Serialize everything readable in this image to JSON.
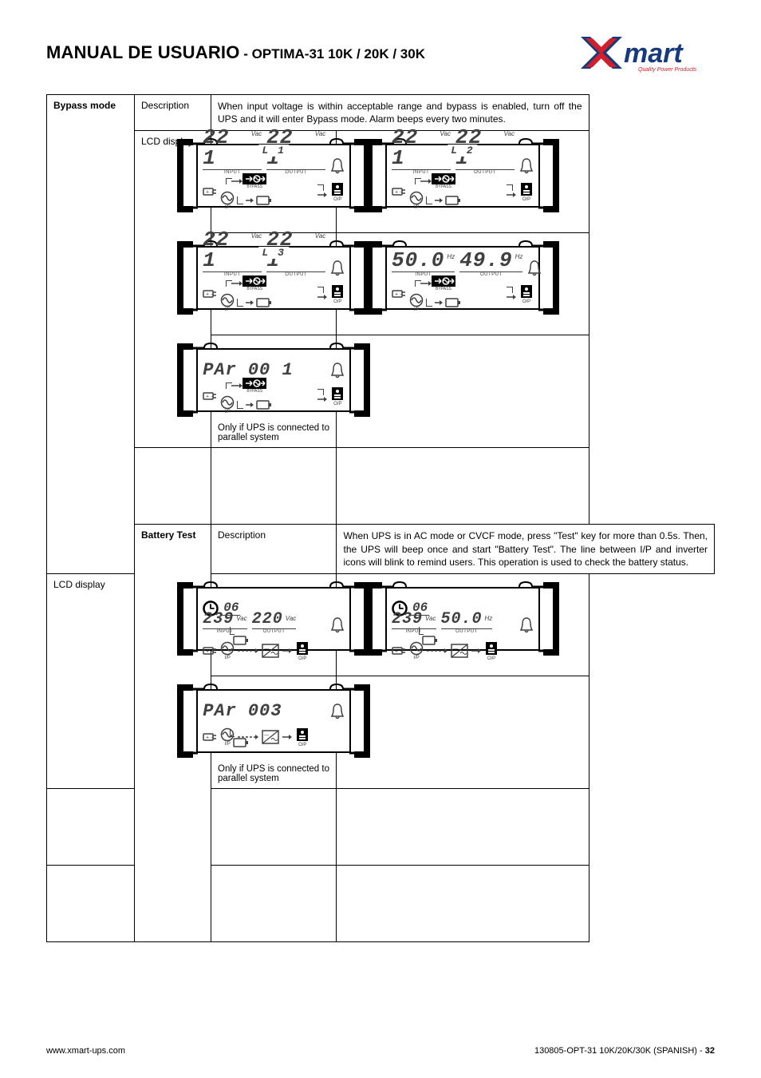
{
  "header": {
    "title_strong": "MANUAL DE USUARIO",
    "title_sub": " - OPTIMA-31 10K / 20K / 30K",
    "logo_text": "mart",
    "logo_tagline": "Quality Power Products"
  },
  "colors": {
    "text": "#000000",
    "lcd_ink": "#404040",
    "logo_blue": "#163a7a",
    "logo_red": "#d1202b",
    "logo_tag": "#d1202b"
  },
  "sections": {
    "bypass": {
      "label": "Bypass mode",
      "desc_label": "Description",
      "lcd_label": "LCD display",
      "description": "When input voltage is within acceptable range and bypass is enabled, turn off the UPS and it will enter Bypass mode. Alarm beeps every two minutes.",
      "parallel_caption": "Only if UPS is connected to parallel system",
      "panels": [
        {
          "phase": "L 1",
          "in_val": "22 1",
          "in_unit": "Vac",
          "out_val": "22 1",
          "out_unit": "Vac",
          "mode": "bypass"
        },
        {
          "phase": "L 2",
          "in_val": "22 1",
          "in_unit": "Vac",
          "out_val": "22 1",
          "out_unit": "Vac",
          "mode": "bypass"
        },
        {
          "phase": "L 3",
          "in_val": "22 1",
          "in_unit": "Vac",
          "out_val": "22 1",
          "out_unit": "Vac",
          "mode": "bypass"
        },
        {
          "phase": "",
          "in_val": "50.0",
          "in_unit": "Hz",
          "out_val": "49.9",
          "out_unit": "Hz",
          "mode": "bypass"
        },
        {
          "phase": "",
          "par_label": "PAr",
          "par_val": "00 1",
          "mode": "bypass",
          "is_par": true
        }
      ]
    },
    "battery": {
      "label": "Battery Test",
      "desc_label": "Description",
      "lcd_label": "LCD display",
      "description": "When UPS is in AC mode or CVCF mode, press \"Test\" key for more than 0.5s. Then, the UPS will beep once and start \"Battery Test\". The line between I/P and inverter icons will blink to remind users. This operation is used to check the battery status.",
      "parallel_caption": "Only if UPS is connected to parallel system",
      "timer_val": "06",
      "panels": [
        {
          "in_val": "239",
          "in_unit": "Vac",
          "out_val": "220",
          "out_unit": "Vac",
          "mode": "online",
          "timer": "06"
        },
        {
          "in_val": "239",
          "in_unit": "Vac",
          "out_val": "50.0",
          "out_unit": "Hz",
          "mode": "online",
          "timer": "06"
        },
        {
          "par_label": "PAr",
          "par_val": "003",
          "mode": "online",
          "is_par": true
        }
      ]
    }
  },
  "labels": {
    "input": "INPUT",
    "output": "OUTPUT",
    "bypass": "BYPASS",
    "ip": "I/P",
    "op": "O/P"
  },
  "footer": {
    "left": "www.xmart-ups.com",
    "right_prefix": "130805-OPT-31 10K/20K/30K (SPANISH) - ",
    "page": "32"
  }
}
